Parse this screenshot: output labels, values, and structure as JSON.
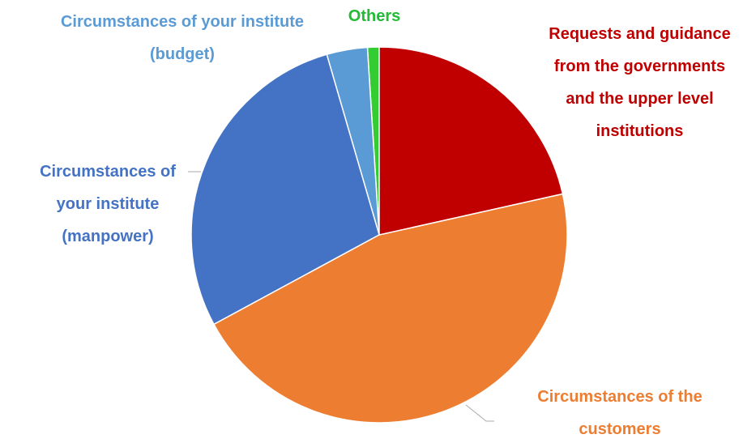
{
  "chart_data": {
    "type": "pie",
    "categories": [
      "Requests and guidance from the governments and the upper level institutions",
      "Circumstances of the customers",
      "Circumstances of your institute (manpower)",
      "Circumstances of your institute (budget)",
      "Others"
    ],
    "values": [
      21.5,
      45.6,
      28.4,
      3.5,
      1.0
    ],
    "colors": [
      "#c00000",
      "#ed7d31",
      "#4472c4",
      "#5b9bd5",
      "#33cc33"
    ]
  }
}
